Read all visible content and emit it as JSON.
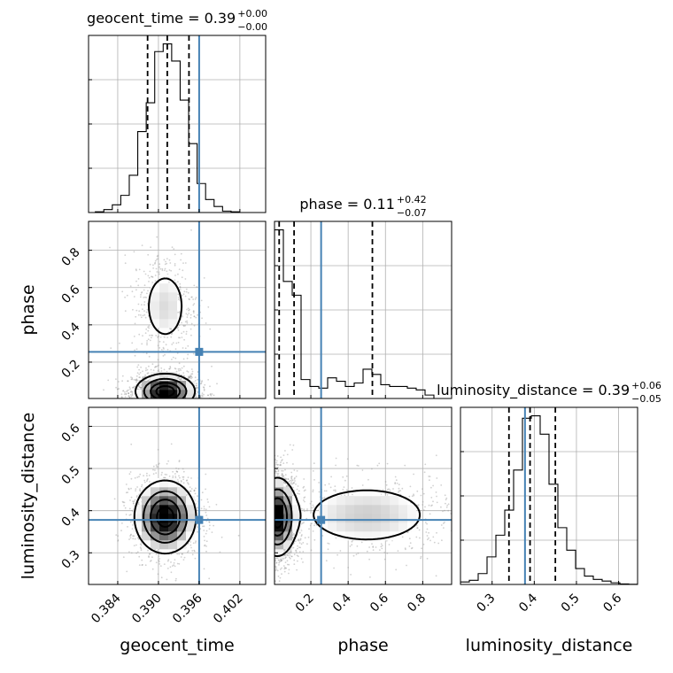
{
  "chart_data": {
    "type": "corner",
    "parameters": [
      "geocent_time",
      "phase",
      "luminosity_distance"
    ],
    "axis_labels": {
      "geocent_time": "geocent_time",
      "phase": "phase",
      "luminosity_distance": "luminosity_distance"
    },
    "ranges": {
      "geocent_time": [
        0.3797,
        0.4058
      ],
      "phase": [
        0.005,
        0.955
      ],
      "luminosity_distance": [
        0.225,
        0.645
      ]
    },
    "ticks": {
      "geocent_time": [
        0.384,
        0.39,
        0.396,
        0.402
      ],
      "phase": [
        0.2,
        0.4,
        0.6,
        0.8
      ],
      "luminosity_distance": [
        0.3,
        0.4,
        0.5,
        0.6
      ]
    },
    "tick_labels": {
      "geocent_time": [
        "0.384",
        "0.390",
        "0.396",
        "0.402"
      ],
      "phase": [
        "0.2",
        "0.4",
        "0.6",
        "0.8"
      ],
      "luminosity_distance": [
        "0.3",
        "0.4",
        "0.5",
        "0.6"
      ]
    },
    "injection": {
      "geocent_time": 0.396,
      "phase": 0.255,
      "luminosity_distance": 0.378
    },
    "quantiles": {
      "geocent_time": [
        0.3884,
        0.3913,
        0.3945
      ],
      "phase": [
        0.03,
        0.11,
        0.53
      ],
      "luminosity_distance": [
        0.34,
        0.39,
        0.45
      ]
    },
    "titles": {
      "geocent_time": {
        "name": "geocent_time",
        "value": "0.39",
        "plus": "+0.00",
        "minus": "−0.00"
      },
      "phase": {
        "name": "phase",
        "value": "0.11",
        "plus": "+0.42",
        "minus": "−0.07"
      },
      "luminosity_distance": {
        "name": "luminosity_distance",
        "value": "0.39",
        "plus": "+0.06",
        "minus": "−0.05"
      }
    },
    "histograms": {
      "geocent_time": {
        "bin_start": 0.3807,
        "bin_width": 0.00125,
        "counts": [
          0.3,
          1.2,
          3.2,
          7.1,
          15.4,
          33.5,
          45.4,
          66.6,
          69.8,
          62.7,
          46.5,
          28.5,
          12.0,
          5.4,
          2.5,
          0.6,
          0.3
        ]
      },
      "phase": {
        "bin_start": 0.005,
        "bin_width": 0.0475,
        "counts": [
          98,
          68,
          60,
          11,
          7,
          6,
          12,
          10,
          7,
          9,
          17,
          14,
          8,
          7,
          7,
          6,
          5,
          2,
          0,
          0
        ]
      },
      "luminosity_distance": {
        "bin_start": 0.225,
        "bin_width": 0.021,
        "counts": [
          1.5,
          2.5,
          6.5,
          16.5,
          29.5,
          44.5,
          68.5,
          99.5,
          101,
          90,
          60,
          34,
          20.5,
          9.5,
          5,
          3,
          2,
          1,
          0.3,
          0.1
        ]
      }
    },
    "pairs": [
      {
        "x": "geocent_time",
        "y": "phase",
        "density": [
          {
            "c": [
              0.391,
              0.043
            ],
            "s": [
              0.0021,
              0.045
            ],
            "w": 1.0
          },
          {
            "c": [
              0.391,
              0.5
            ],
            "s": [
              0.0021,
              0.13
            ],
            "w": 0.22
          }
        ]
      },
      {
        "x": "geocent_time",
        "y": "luminosity_distance",
        "density": [
          {
            "c": [
              0.391,
              0.385
            ],
            "s": [
              0.0022,
              0.042
            ],
            "w": 1.0
          }
        ]
      },
      {
        "x": "phase",
        "y": "luminosity_distance",
        "density": [
          {
            "c": [
              0.02,
              0.385
            ],
            "s": [
              0.05,
              0.045
            ],
            "w": 1.0
          },
          {
            "c": [
              0.5,
              0.39
            ],
            "s": [
              0.22,
              0.045
            ],
            "w": 0.28
          }
        ]
      }
    ],
    "colors": {
      "injection": "#4682b4",
      "hist": "#000000",
      "contour": "#000000",
      "grid": "#b0b0b0",
      "points": "#9a9a9a"
    },
    "grid": true,
    "legend": "none"
  }
}
